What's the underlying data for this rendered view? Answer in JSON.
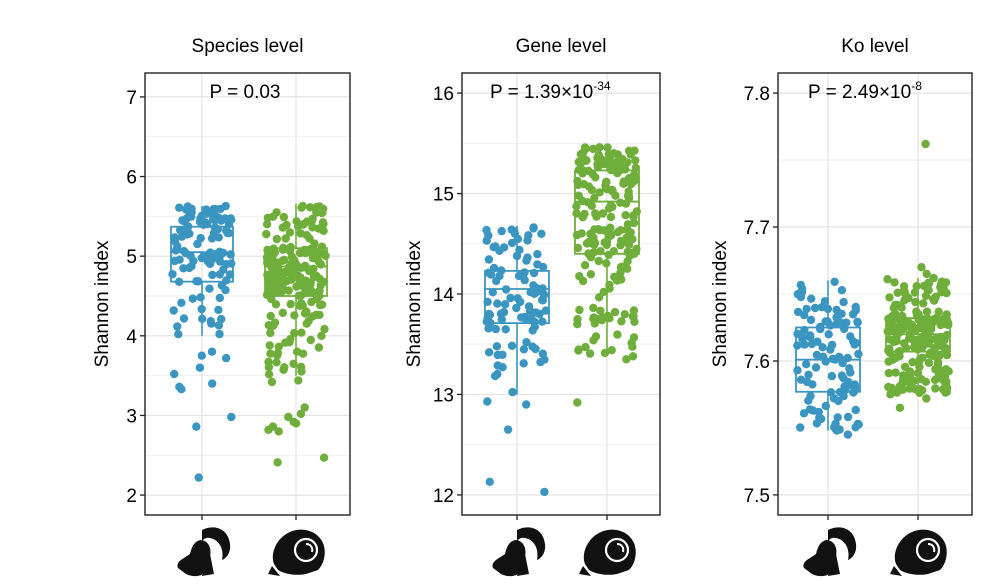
{
  "colors": {
    "group1": "#3a95c1",
    "group2": "#6fae3b",
    "grid": "#e3e3e3",
    "frame": "#222222"
  },
  "icons": [
    "ibex-head-icon",
    "argali-ram-head-icon"
  ],
  "chart_data": [
    {
      "type": "box-jitter",
      "title": "Species level",
      "ylabel": "Shannon index",
      "ylim": [
        1.75,
        7.3
      ],
      "yticks": [
        "2",
        "3",
        "4",
        "5",
        "6",
        "7"
      ],
      "annotation": {
        "text": "P = 0.03"
      },
      "series": [
        {
          "name": "",
          "color": "#3a95c1",
          "box": {
            "whisker_low": 4.0,
            "q1": 4.68,
            "median": 5.05,
            "q3": 5.37,
            "whisker_high": 5.63
          },
          "n": 110,
          "extra_points": [
            3.8,
            3.75,
            3.72,
            3.6,
            3.52,
            3.4,
            3.36,
            3.33,
            2.98,
            2.86,
            2.22
          ]
        },
        {
          "name": "",
          "color": "#6fae3b",
          "box": {
            "whisker_low": 3.5,
            "q1": 4.5,
            "median": 4.87,
            "q3": 5.1,
            "whisker_high": 5.66
          },
          "n": 200,
          "extra_points": [
            3.42,
            3.44,
            3.1,
            3.02,
            2.98,
            2.92,
            2.9,
            2.86,
            2.82,
            2.8,
            2.47,
            2.41
          ]
        }
      ]
    },
    {
      "type": "box-jitter",
      "title": "Gene level",
      "ylabel": "Shannon index",
      "ylim": [
        11.8,
        16.2
      ],
      "yticks": [
        "12",
        "13",
        "14",
        "15",
        "16"
      ],
      "annotation": {
        "text": "P = 1.39×10",
        "sup": "-34"
      },
      "series": [
        {
          "name": "",
          "color": "#3a95c1",
          "box": {
            "whisker_low": 13.0,
            "q1": 13.71,
            "median": 14.05,
            "q3": 14.23,
            "whisker_high": 14.68
          },
          "n": 100,
          "extra_points": [
            12.93,
            12.9,
            12.65,
            12.13,
            12.03
          ]
        },
        {
          "name": "",
          "color": "#6fae3b",
          "box": {
            "whisker_low": 13.4,
            "q1": 14.4,
            "median": 14.92,
            "q3": 15.23,
            "whisker_high": 15.47
          },
          "n": 200,
          "extra_points": [
            13.38,
            13.35,
            12.92
          ]
        }
      ]
    },
    {
      "type": "box-jitter",
      "title": "Ko level",
      "ylabel": "Shannon index",
      "ylim": [
        7.485,
        7.815
      ],
      "yticks": [
        "7.5",
        "7.6",
        "7.7",
        "7.8"
      ],
      "annotation": {
        "text": "P = 2.49×10",
        "sup": "-8"
      },
      "series": [
        {
          "name": "",
          "color": "#3a95c1",
          "box": {
            "whisker_low": 7.548,
            "q1": 7.577,
            "median": 7.601,
            "q3": 7.625,
            "whisker_high": 7.66
          },
          "n": 110,
          "extra_points": [
            7.545
          ]
        },
        {
          "name": "",
          "color": "#6fae3b",
          "box": {
            "whisker_low": 7.575,
            "q1": 7.607,
            "median": 7.62,
            "q3": 7.632,
            "whisker_high": 7.662
          },
          "n": 200,
          "extra_points": [
            7.67,
            7.665,
            7.565,
            7.572,
            7.762
          ]
        }
      ]
    }
  ]
}
